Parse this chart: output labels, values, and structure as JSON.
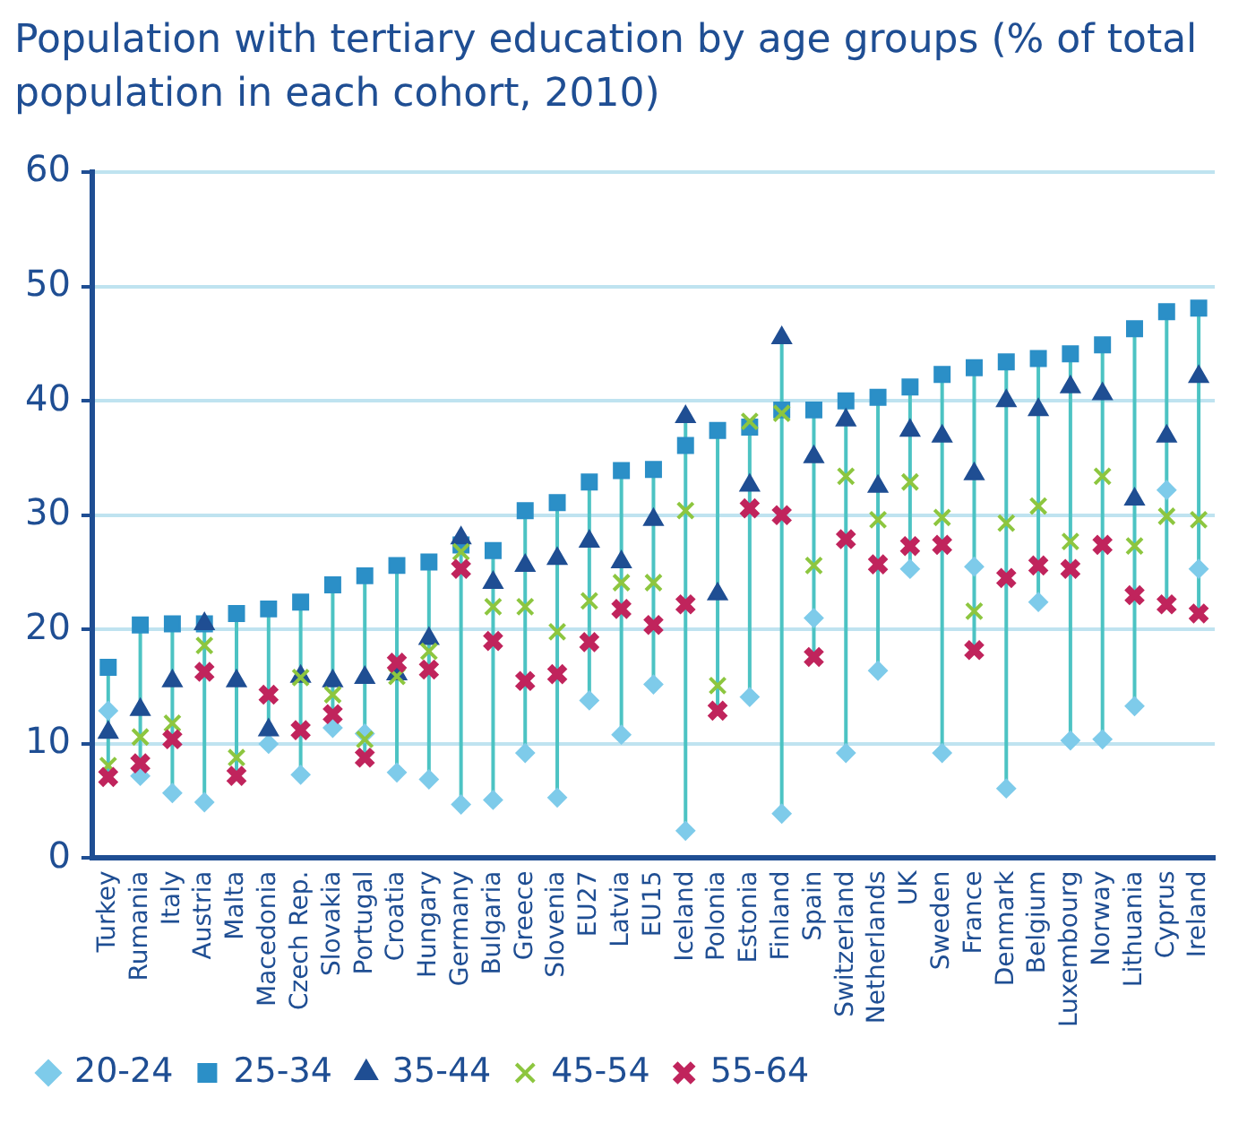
{
  "chart_data": {
    "type": "scatter",
    "title": "Population with tertiary education by age groups (% of total population in each cohort, 2010)",
    "categories": [
      "Turkey",
      "Rumania",
      "Italy",
      "Austria",
      "Malta",
      "Macedonia",
      "Czech Rep.",
      "Slovakia",
      "Portugal",
      "Croatia",
      "Hungary",
      "Germany",
      "Bulgaria",
      "Greece",
      "Slovenia",
      "EU27",
      "Latvia",
      "EU15",
      "Iceland",
      "Polonia",
      "Estonia",
      "Finland",
      "Spain",
      "Switzerland",
      "Netherlands",
      "UK",
      "Sweden",
      "France",
      "Denmark",
      "Belgium",
      "Luxembourg",
      "Norway",
      "Lithuania",
      "Cyprus",
      "Ireland"
    ],
    "series": [
      {
        "name": "20-24",
        "color": "#7ecbea",
        "marker": "diamond",
        "values": [
          12.9,
          7.2,
          5.7,
          4.9,
          null,
          10.0,
          7.3,
          11.4,
          10.9,
          7.5,
          6.9,
          4.7,
          5.1,
          9.2,
          5.3,
          13.8,
          10.8,
          15.2,
          2.4,
          null,
          14.1,
          3.9,
          21.0,
          9.2,
          16.4,
          25.3,
          9.2,
          25.5,
          6.1,
          22.4,
          10.3,
          10.4,
          13.3,
          32.2,
          25.3
        ]
      },
      {
        "name": "25-34",
        "color": "#2b8fc7",
        "marker": "square",
        "values": [
          16.7,
          20.4,
          20.5,
          20.5,
          21.4,
          21.8,
          22.4,
          23.9,
          24.7,
          25.6,
          25.9,
          27.4,
          26.9,
          30.4,
          31.1,
          32.9,
          33.9,
          34.0,
          36.1,
          37.4,
          37.7,
          39.2,
          39.2,
          40.0,
          40.3,
          41.2,
          42.3,
          42.9,
          43.4,
          43.7,
          44.1,
          44.9,
          46.3,
          47.8,
          48.1
        ]
      },
      {
        "name": "35-44",
        "color": "#1f4e93",
        "marker": "triangle",
        "values": [
          11.0,
          13.0,
          15.5,
          20.5,
          15.5,
          11.2,
          15.9,
          15.5,
          15.8,
          16.1,
          19.2,
          28.0,
          24.1,
          25.6,
          26.2,
          27.7,
          25.9,
          29.6,
          38.6,
          23.1,
          32.6,
          45.5,
          35.1,
          38.3,
          32.5,
          37.4,
          36.9,
          33.6,
          40.0,
          39.2,
          41.2,
          40.6,
          31.4,
          36.9,
          42.1
        ]
      },
      {
        "name": "45-54",
        "color": "#8dc63f",
        "marker": "cross",
        "values": [
          8.1,
          10.6,
          11.8,
          18.6,
          8.8,
          null,
          15.8,
          14.3,
          10.4,
          15.9,
          18.1,
          26.8,
          22.0,
          22.0,
          19.8,
          22.5,
          24.1,
          24.1,
          30.4,
          15.1,
          38.2,
          38.9,
          25.6,
          33.4,
          29.6,
          32.9,
          29.8,
          21.6,
          29.3,
          30.8,
          27.7,
          33.4,
          27.3,
          29.9,
          29.6
        ]
      },
      {
        "name": "55-64",
        "color": "#c0245c",
        "marker": "cross",
        "values": [
          7.1,
          8.3,
          10.4,
          16.3,
          7.2,
          14.3,
          11.2,
          12.6,
          8.8,
          17.1,
          16.5,
          25.3,
          19.0,
          15.5,
          16.1,
          18.9,
          21.8,
          20.4,
          22.2,
          12.9,
          30.6,
          30.0,
          17.6,
          27.9,
          25.7,
          27.3,
          27.4,
          18.2,
          24.5,
          25.6,
          25.3,
          27.4,
          23.0,
          22.2,
          21.4
        ]
      }
    ],
    "ylim": [
      0,
      60
    ],
    "yticks": [
      0,
      10,
      20,
      30,
      40,
      50,
      60
    ],
    "grid": "y",
    "legend": "bottom"
  }
}
